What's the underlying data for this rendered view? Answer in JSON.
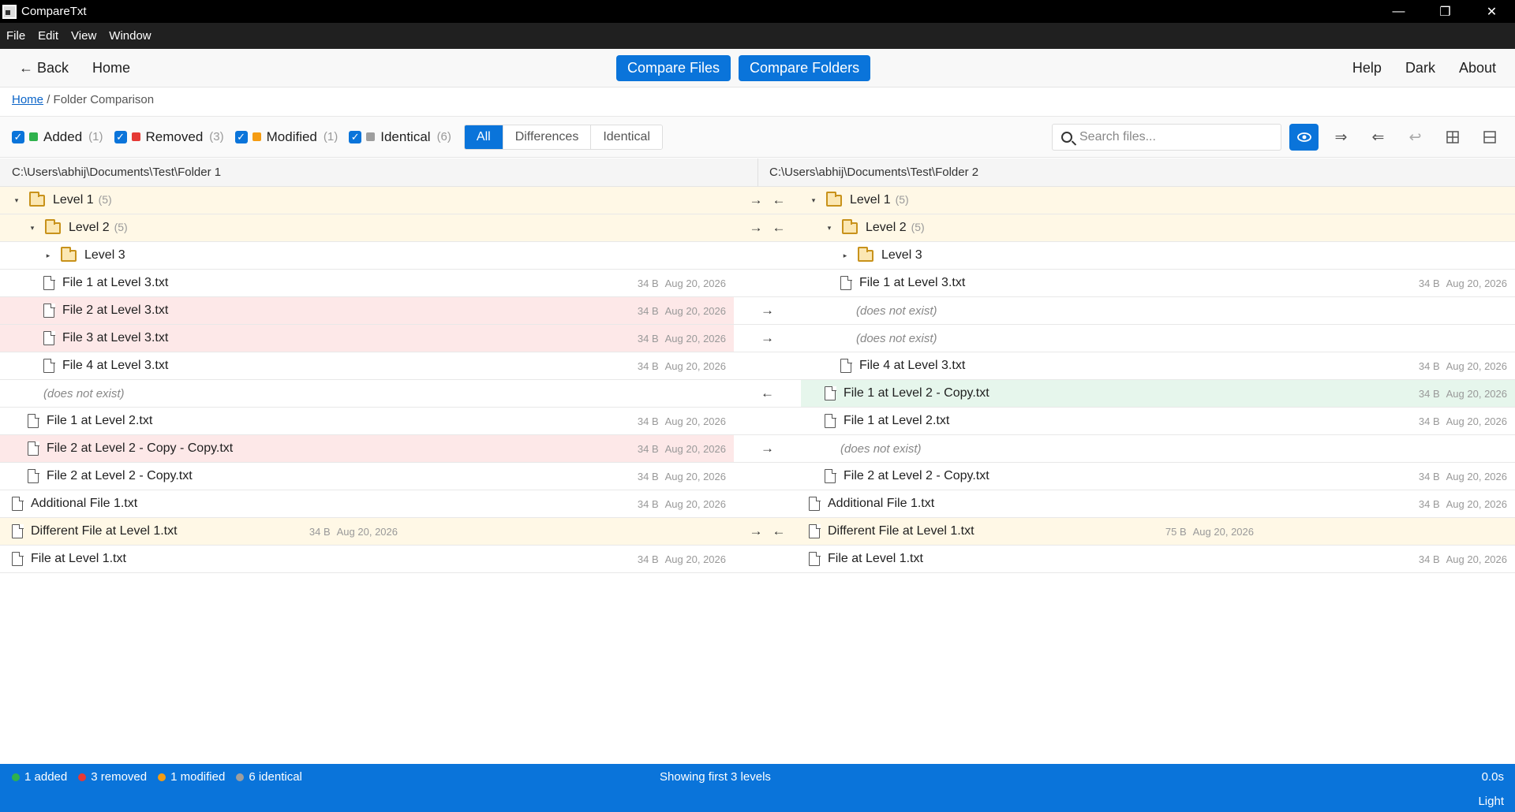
{
  "window": {
    "title": "CompareTxt",
    "controls": [
      "—",
      "❐",
      "✕"
    ]
  },
  "menu": [
    "File",
    "Edit",
    "View",
    "Window"
  ],
  "nav": {
    "back": "← Back",
    "home": "Home",
    "compare_files": "Compare Files",
    "compare_folders": "Compare Folders",
    "help": "Help",
    "theme": "Dark",
    "about": "About"
  },
  "breadcrumb": {
    "home": "Home",
    "sep": "/",
    "current": "Folder Comparison"
  },
  "filters": [
    {
      "label": "Added",
      "count": "(1)",
      "color": "#2fb24d"
    },
    {
      "label": "Removed",
      "count": "(3)",
      "color": "#e53935"
    },
    {
      "label": "Modified",
      "count": "(1)",
      "color": "#f59c12"
    },
    {
      "label": "Identical",
      "count": "(6)",
      "color": "#9e9e9e"
    }
  ],
  "view_tabs": [
    "All",
    "Differences",
    "Identical"
  ],
  "search": {
    "placeholder": "Search files..."
  },
  "tool_icons": [
    "eye-icon",
    "copy-all-right-icon",
    "copy-all-left-icon",
    "undo-icon",
    "grid-view-icon",
    "split-view-icon"
  ],
  "paths": {
    "left": "C:\\Users\\abhij\\Documents\\Test\\Folder 1",
    "right": "C:\\Users\\abhij\\Documents\\Test\\Folder 2"
  },
  "missing_text": "(does not exist)",
  "rows": [
    {
      "status": "modified",
      "indent": 0,
      "type": "folder",
      "expand": "▾",
      "left": {
        "name": "Level 1",
        "count": "(5)"
      },
      "right": {
        "name": "Level 1",
        "count": "(5)"
      },
      "arrows": [
        "→",
        "←"
      ]
    },
    {
      "status": "modified",
      "indent": 1,
      "type": "folder",
      "expand": "▾",
      "left": {
        "name": "Level 2",
        "count": "(5)"
      },
      "right": {
        "name": "Level 2",
        "count": "(5)"
      },
      "arrows": [
        "→",
        "←"
      ]
    },
    {
      "status": "identical",
      "indent": 2,
      "type": "folder",
      "expand": "▸",
      "left": {
        "name": "Level 3"
      },
      "right": {
        "name": "Level 3"
      },
      "arrows": []
    },
    {
      "status": "identical",
      "indent": 2,
      "type": "file",
      "left": {
        "name": "File 1 at Level 3.txt",
        "size": "34 B",
        "date": "Aug 20, 2026"
      },
      "right": {
        "name": "File 1 at Level 3.txt",
        "size": "34 B",
        "date": "Aug 20, 2026"
      },
      "arrows": []
    },
    {
      "status": "removed",
      "indent": 2,
      "type": "file",
      "left": {
        "name": "File 2 at Level 3.txt",
        "size": "34 B",
        "date": "Aug 20, 2026"
      },
      "right": null,
      "arrows": [
        "→"
      ]
    },
    {
      "status": "removed",
      "indent": 2,
      "type": "file",
      "left": {
        "name": "File 3 at Level 3.txt",
        "size": "34 B",
        "date": "Aug 20, 2026"
      },
      "right": null,
      "arrows": [
        "→"
      ]
    },
    {
      "status": "identical",
      "indent": 2,
      "type": "file",
      "left": {
        "name": "File 4 at Level 3.txt",
        "size": "34 B",
        "date": "Aug 20, 2026"
      },
      "right": {
        "name": "File 4 at Level 3.txt",
        "size": "34 B",
        "date": "Aug 20, 2026"
      },
      "arrows": []
    },
    {
      "status": "added",
      "indent": 1,
      "type": "file",
      "left": null,
      "right": {
        "name": "File 1 at Level 2 - Copy.txt",
        "size": "34 B",
        "date": "Aug 20, 2026"
      },
      "arrows": [
        "←"
      ]
    },
    {
      "status": "identical",
      "indent": 1,
      "type": "file",
      "left": {
        "name": "File 1 at Level 2.txt",
        "size": "34 B",
        "date": "Aug 20, 2026"
      },
      "right": {
        "name": "File 1 at Level 2.txt",
        "size": "34 B",
        "date": "Aug 20, 2026"
      },
      "arrows": []
    },
    {
      "status": "removed",
      "indent": 1,
      "type": "file",
      "left": {
        "name": "File 2 at Level 2 - Copy - Copy.txt",
        "size": "34 B",
        "date": "Aug 20, 2026"
      },
      "right": null,
      "arrows": [
        "→"
      ]
    },
    {
      "status": "identical",
      "indent": 1,
      "type": "file",
      "left": {
        "name": "File 2 at Level 2 - Copy.txt",
        "size": "34 B",
        "date": "Aug 20, 2026"
      },
      "right": {
        "name": "File 2 at Level 2 - Copy.txt",
        "size": "34 B",
        "date": "Aug 20, 2026"
      },
      "arrows": []
    },
    {
      "status": "identical",
      "indent": 0,
      "type": "file",
      "left": {
        "name": "Additional File 1.txt",
        "size": "34 B",
        "date": "Aug 20, 2026"
      },
      "right": {
        "name": "Additional File 1.txt",
        "size": "34 B",
        "date": "Aug 20, 2026"
      },
      "arrows": []
    },
    {
      "status": "modified",
      "indent": 0,
      "type": "file",
      "inline_meta": true,
      "left": {
        "name": "Different File at Level 1.txt",
        "size": "34 B",
        "date": "Aug 20, 2026"
      },
      "right": {
        "name": "Different File at Level 1.txt",
        "size": "75 B",
        "date": "Aug 20, 2026"
      },
      "arrows": [
        "→",
        "←"
      ]
    },
    {
      "status": "identical",
      "indent": 0,
      "type": "file",
      "left": {
        "name": "File at Level 1.txt",
        "size": "34 B",
        "date": "Aug 20, 2026"
      },
      "right": {
        "name": "File at Level 1.txt",
        "size": "34 B",
        "date": "Aug 20, 2026"
      },
      "arrows": []
    }
  ],
  "status": {
    "added": "1 added",
    "removed": "3 removed",
    "modified": "1 modified",
    "identical": "6 identical",
    "center": "Showing first 3 levels",
    "time": "0.0s",
    "theme": "Light"
  }
}
